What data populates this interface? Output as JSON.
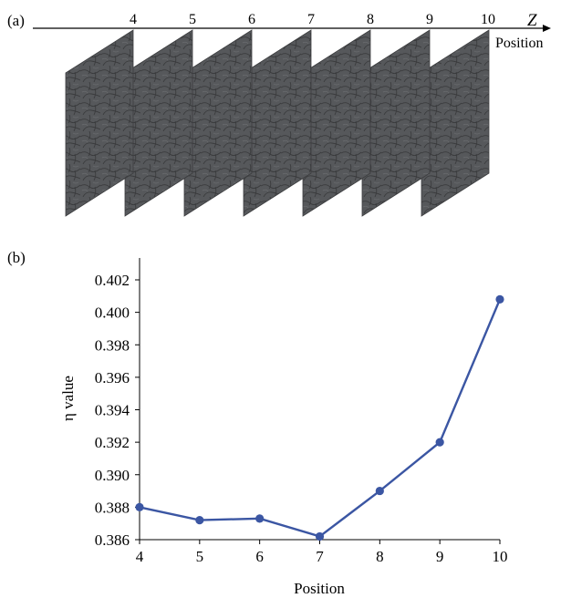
{
  "panel_a": {
    "label": "(a)",
    "axis_symbol": "Z",
    "axis_label": "Position",
    "positions": [
      "4",
      "5",
      "6",
      "7",
      "8",
      "9",
      "10"
    ],
    "slice_color": "#55575a"
  },
  "panel_b": {
    "label": "(b)"
  },
  "chart_data": {
    "type": "line",
    "xlabel": "Position",
    "ylabel": "η value",
    "x": [
      4,
      5,
      6,
      7,
      8,
      9,
      10
    ],
    "xticks": [
      "4",
      "5",
      "6",
      "7",
      "8",
      "9",
      "10"
    ],
    "yticks": [
      "0.386",
      "0.388",
      "0.390",
      "0.392",
      "0.394",
      "0.396",
      "0.398",
      "0.400",
      "0.402"
    ],
    "xlim": [
      4,
      10
    ],
    "ylim": [
      0.386,
      0.402
    ],
    "grid": false,
    "series": [
      {
        "values": [
          0.388,
          0.3872,
          0.3873,
          0.3862,
          0.389,
          0.392,
          0.4008
        ],
        "color": "#3b56a3"
      }
    ]
  }
}
